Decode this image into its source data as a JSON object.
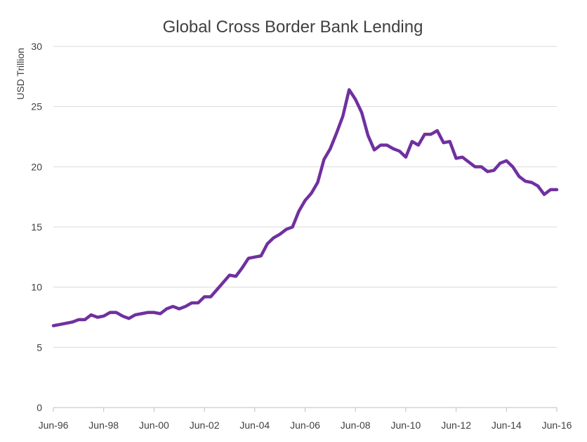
{
  "chart_data": {
    "type": "line",
    "title": "Global Cross Border Bank Lending",
    "xlabel": "",
    "ylabel": "USD Trillion",
    "ylim": [
      0,
      30
    ],
    "yticks": [
      0,
      5,
      10,
      15,
      20,
      25,
      30
    ],
    "xlim": [
      "Jun-96",
      "Jun-16"
    ],
    "xticks": [
      "Jun-96",
      "Jun-98",
      "Jun-00",
      "Jun-02",
      "Jun-04",
      "Jun-06",
      "Jun-08",
      "Jun-10",
      "Jun-12",
      "Jun-14",
      "Jun-16"
    ],
    "grid": true,
    "legend": "none",
    "line_color": "#7030a0",
    "series": [
      {
        "x": [
          "Jun-96",
          "Sep-96",
          "Dec-96",
          "Mar-97",
          "Jun-97",
          "Sep-97",
          "Dec-97",
          "Mar-98",
          "Jun-98",
          "Sep-98",
          "Dec-98",
          "Mar-99",
          "Jun-99",
          "Sep-99",
          "Dec-99",
          "Mar-00",
          "Jun-00",
          "Sep-00",
          "Dec-00",
          "Mar-01",
          "Jun-01",
          "Sep-01",
          "Dec-01",
          "Mar-02",
          "Jun-02",
          "Sep-02",
          "Dec-02",
          "Mar-03",
          "Jun-03",
          "Sep-03",
          "Dec-03",
          "Mar-04",
          "Jun-04",
          "Sep-04",
          "Dec-04",
          "Mar-05",
          "Jun-05",
          "Sep-05",
          "Dec-05",
          "Mar-06",
          "Jun-06",
          "Sep-06",
          "Dec-06",
          "Mar-07",
          "Jun-07",
          "Sep-07",
          "Dec-07",
          "Mar-08",
          "Jun-08",
          "Sep-08",
          "Dec-08",
          "Mar-09",
          "Jun-09",
          "Sep-09",
          "Dec-09",
          "Mar-10",
          "Jun-10",
          "Sep-10",
          "Dec-10",
          "Mar-11",
          "Jun-11",
          "Sep-11",
          "Dec-11",
          "Mar-12",
          "Jun-12",
          "Sep-12",
          "Dec-12",
          "Mar-13",
          "Jun-13",
          "Sep-13",
          "Dec-13",
          "Mar-14",
          "Jun-14",
          "Sep-14",
          "Dec-14",
          "Mar-15",
          "Jun-15",
          "Sep-15",
          "Dec-15",
          "Mar-16",
          "Jun-16"
        ],
        "values": [
          6.8,
          6.9,
          7.0,
          7.1,
          7.3,
          7.3,
          7.7,
          7.5,
          7.6,
          7.9,
          7.9,
          7.6,
          7.4,
          7.7,
          7.8,
          7.9,
          7.9,
          7.8,
          8.2,
          8.4,
          8.2,
          8.4,
          8.7,
          8.7,
          9.2,
          9.2,
          9.8,
          10.4,
          11.0,
          10.9,
          11.6,
          12.4,
          12.5,
          12.6,
          13.6,
          14.1,
          14.4,
          14.8,
          15.0,
          16.3,
          17.2,
          17.8,
          18.7,
          20.6,
          21.5,
          22.8,
          24.2,
          26.4,
          25.6,
          24.5,
          22.6,
          21.4,
          21.8,
          21.8,
          21.5,
          21.3,
          20.8,
          22.1,
          21.8,
          22.7,
          22.7,
          23.0,
          22.0,
          22.1,
          20.7,
          20.8,
          20.4,
          20.0,
          20.0,
          19.6,
          19.7,
          20.3,
          20.5,
          20.0,
          19.2,
          18.8,
          18.7,
          18.4,
          17.7,
          18.1,
          18.1
        ]
      }
    ]
  }
}
